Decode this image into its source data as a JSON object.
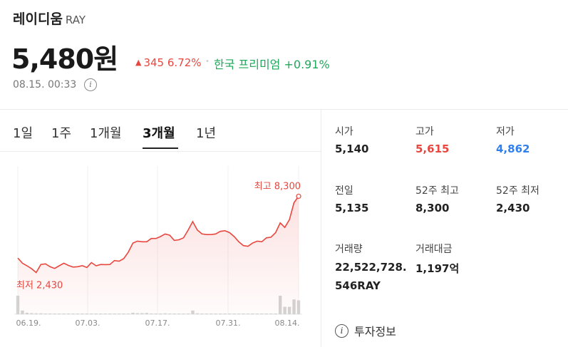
{
  "header": {
    "name": "레이디움",
    "ticker": "RAY",
    "price": "5,480원",
    "change_amount": "345",
    "change_percent": "6.72%",
    "premium": "한국 프리미엄 +0.91%",
    "timestamp": "08.15. 00:33"
  },
  "tabs": [
    {
      "label": "1일",
      "active": false
    },
    {
      "label": "1주",
      "active": false
    },
    {
      "label": "1개월",
      "active": false
    },
    {
      "label": "3개월",
      "active": true
    },
    {
      "label": "1년",
      "active": false
    }
  ],
  "stats": {
    "open": {
      "label": "시가",
      "value": "5,140"
    },
    "high": {
      "label": "고가",
      "value": "5,615"
    },
    "low": {
      "label": "저가",
      "value": "4,862"
    },
    "prev": {
      "label": "전일",
      "value": "5,135"
    },
    "high52": {
      "label": "52주 최고",
      "value": "8,300"
    },
    "low52": {
      "label": "52주 최저",
      "value": "2,430"
    },
    "volume": {
      "label": "거래량",
      "value_line1": "22,522,728.",
      "value_line2": "546RAY"
    },
    "amount": {
      "label": "거래대금",
      "value": "1,197억"
    }
  },
  "invest_info": "투자정보",
  "colors": {
    "up": "#e8473f",
    "down": "#2f7ff0",
    "premium": "#1fa85b"
  },
  "chart_data": {
    "type": "line",
    "annotations": {
      "max_label": "최고 8,300",
      "min_label": "최저 2,430",
      "max": 8300,
      "min": 2430
    },
    "ylim": [
      1800,
      9200
    ],
    "xticks": [
      "06.19.",
      "07.03.",
      "07.17.",
      "07.31.",
      "08.14."
    ],
    "values": [
      3550,
      3150,
      2950,
      2720,
      2430,
      3050,
      3100,
      2880,
      2750,
      2950,
      3150,
      2980,
      2850,
      2880,
      2960,
      2820,
      3200,
      2950,
      3050,
      3040,
      3050,
      3350,
      3300,
      3500,
      4000,
      4700,
      4850,
      4800,
      4800,
      5050,
      5050,
      5200,
      5400,
      5300,
      4900,
      4950,
      5100,
      5700,
      6350,
      5700,
      5400,
      5350,
      5350,
      5400,
      5600,
      5650,
      5500,
      5200,
      4800,
      4500,
      4450,
      4700,
      4850,
      4800,
      5100,
      5150,
      5500,
      6250,
      5900,
      6500,
      7800,
      8300
    ],
    "volume": [
      100,
      20,
      8,
      6,
      5,
      5,
      4,
      4,
      3,
      3,
      3,
      2,
      2,
      3,
      2,
      2,
      2,
      3,
      4,
      4,
      3,
      2,
      2,
      2,
      2,
      8,
      6,
      6,
      7,
      4,
      4,
      4,
      5,
      4,
      3,
      4,
      3,
      4,
      20,
      5,
      4,
      4,
      3,
      4,
      4,
      4,
      3,
      2,
      2,
      3,
      3,
      3,
      3,
      2,
      3,
      3,
      4,
      100,
      40,
      40,
      80,
      75
    ]
  }
}
